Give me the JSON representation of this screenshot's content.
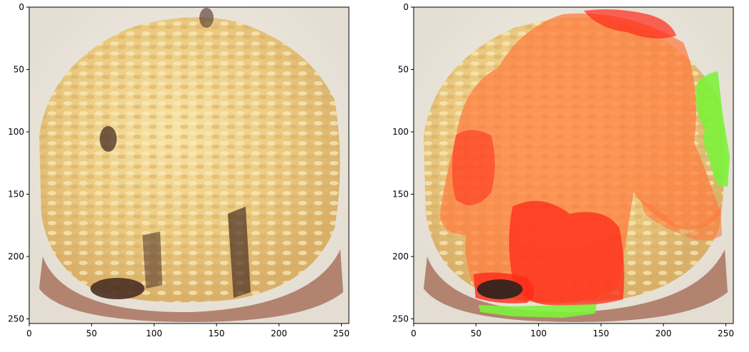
{
  "figure": {
    "panels": [
      {
        "name": "original-image",
        "x_ticks": [
          "0",
          "50",
          "100",
          "150",
          "200",
          "250"
        ],
        "y_ticks": [
          "0",
          "50",
          "100",
          "150",
          "200",
          "250"
        ]
      },
      {
        "name": "overlay-image",
        "x_ticks": [
          "0",
          "50",
          "100",
          "150",
          "200",
          "250"
        ],
        "y_ticks": [
          "0",
          "50",
          "100",
          "150",
          "200",
          "250"
        ]
      }
    ]
  },
  "colors": {
    "rice": "#e9c77c",
    "rice_light": "#f6e4a8",
    "bowl": "#f1efe9",
    "bowl_rim": "#a9735e",
    "mushroom": "#4a2f24",
    "overlay_red": "#ff2a1a",
    "overlay_orange": "#ff7a3d",
    "overlay_green": "#7cf23a"
  }
}
